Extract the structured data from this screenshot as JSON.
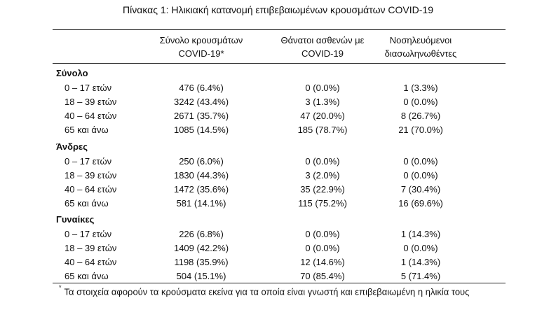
{
  "title": "Πίνακας 1: Ηλικιακή κατανομή επιβεβαιωμένων κρουσμάτων COVID-19",
  "headers": {
    "col1": [
      "Σύνολο κρουσμάτων",
      "COVID-19*"
    ],
    "col2": [
      "Θάνατοι ασθενών με",
      "COVID-19"
    ],
    "col3": [
      "Νοσηλευόμενοι",
      "διασωληνωθέντες"
    ]
  },
  "groups": [
    {
      "name": "Σύνολο",
      "rows": [
        {
          "age": "0 – 17 ετών",
          "cases": "476 (6.4%)",
          "deaths": "0 (0.0%)",
          "intubated": "1 (3.3%)"
        },
        {
          "age": "18 – 39 ετών",
          "cases": "3242 (43.4%)",
          "deaths": "3 (1.3%)",
          "intubated": "0 (0.0%)"
        },
        {
          "age": "40 – 64 ετών",
          "cases": "2671 (35.7%)",
          "deaths": "47 (20.0%)",
          "intubated": "8 (26.7%)"
        },
        {
          "age": "65 και άνω",
          "cases": "1085 (14.5%)",
          "deaths": "185 (78.7%)",
          "intubated": "21 (70.0%)"
        }
      ]
    },
    {
      "name": "Άνδρες",
      "rows": [
        {
          "age": "0 – 17 ετών",
          "cases": "250 (6.0%)",
          "deaths": "0 (0.0%)",
          "intubated": "0 (0.0%)"
        },
        {
          "age": "18 – 39 ετών",
          "cases": "1830 (44.3%)",
          "deaths": "3 (2.0%)",
          "intubated": "0 (0.0%)"
        },
        {
          "age": "40 – 64 ετών",
          "cases": "1472 (35.6%)",
          "deaths": "35 (22.9%)",
          "intubated": "7 (30.4%)"
        },
        {
          "age": "65 και άνω",
          "cases": "581 (14.1%)",
          "deaths": "115 (75.2%)",
          "intubated": "16 (69.6%)"
        }
      ]
    },
    {
      "name": "Γυναίκες",
      "rows": [
        {
          "age": "0 – 17 ετών",
          "cases": "226 (6.8%)",
          "deaths": "0 (0.0%)",
          "intubated": "1 (14.3%)"
        },
        {
          "age": "18 – 39 ετών",
          "cases": "1409 (42.2%)",
          "deaths": "0 (0.0%)",
          "intubated": "0 (0.0%)"
        },
        {
          "age": "40 – 64 ετών",
          "cases": "1198 (35.9%)",
          "deaths": "12 (14.6%)",
          "intubated": "1 (14.3%)"
        },
        {
          "age": "65 και άνω",
          "cases": "504 (15.1%)",
          "deaths": "70 (85.4%)",
          "intubated": "5 (71.4%)"
        }
      ]
    }
  ],
  "footnote": {
    "mark": "*",
    "text": "Τα στοιχεία αφορούν τα κρούσματα εκείνα για τα οποία είναι γνωστή και επιβεβαιωμένη η ηλικία τους"
  }
}
